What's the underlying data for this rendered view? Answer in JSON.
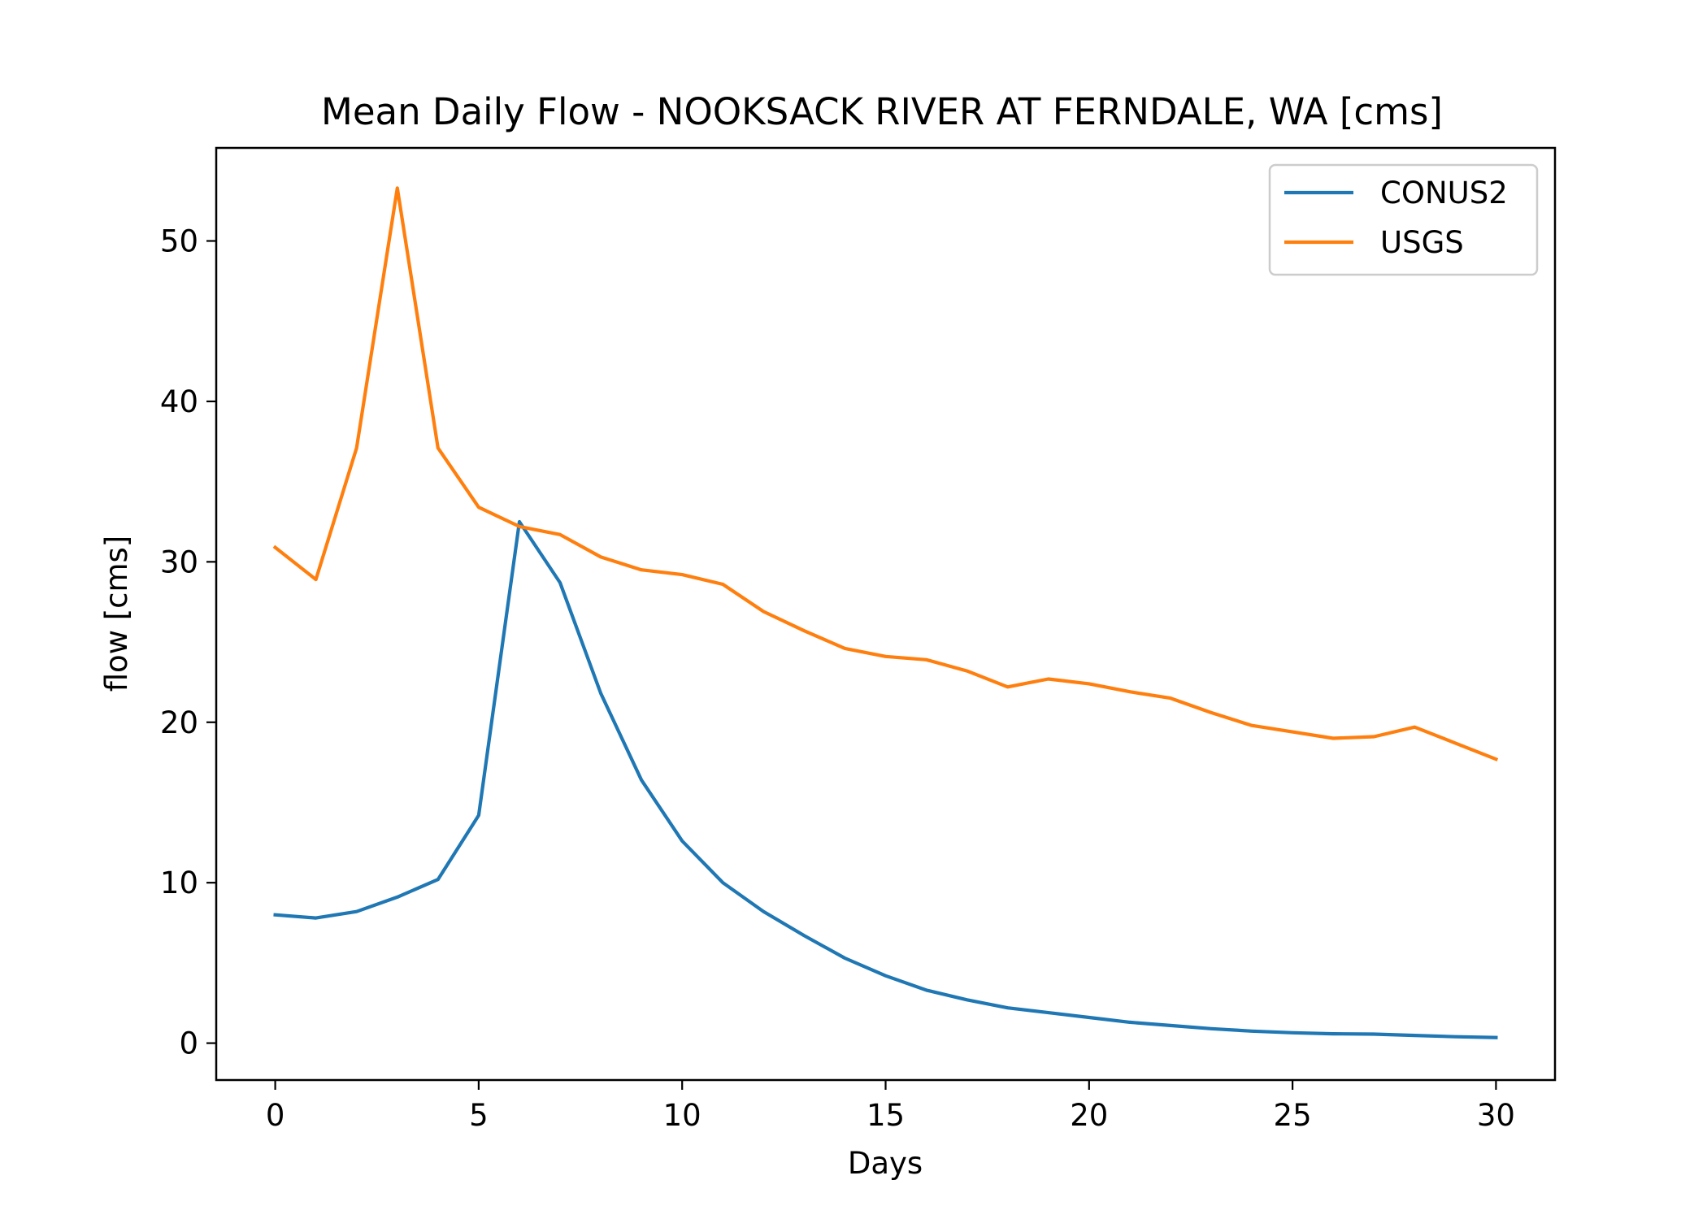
{
  "chart_data": {
    "type": "line",
    "title": "Mean Daily Flow - NOOKSACK RIVER AT FERNDALE, WA [cms]",
    "xlabel": "Days",
    "ylabel": "flow [cms]",
    "xlim": [
      -1.45,
      31.45
    ],
    "ylim": [
      -2.3,
      55.8
    ],
    "xticks": [
      0,
      5,
      10,
      15,
      20,
      25,
      30
    ],
    "yticks": [
      0,
      10,
      20,
      30,
      40,
      50
    ],
    "grid": false,
    "legend": "upper right",
    "x": [
      0,
      1,
      2,
      3,
      4,
      5,
      6,
      7,
      8,
      9,
      10,
      11,
      12,
      13,
      14,
      15,
      16,
      17,
      18,
      19,
      20,
      21,
      22,
      23,
      24,
      25,
      26,
      27,
      28,
      29,
      30
    ],
    "series": [
      {
        "name": "CONUS2",
        "color": "#1f77b4",
        "values": [
          8.0,
          7.8,
          8.2,
          9.1,
          10.2,
          14.2,
          32.5,
          28.7,
          21.8,
          16.4,
          12.6,
          10.0,
          8.2,
          6.7,
          5.3,
          4.2,
          3.3,
          2.7,
          2.2,
          1.9,
          1.6,
          1.3,
          1.1,
          0.9,
          0.75,
          0.65,
          0.58,
          0.56,
          0.48,
          0.4,
          0.35
        ]
      },
      {
        "name": "USGS",
        "color": "#ff7f0e",
        "values": [
          30.9,
          28.9,
          37.1,
          53.3,
          37.1,
          33.4,
          32.2,
          31.7,
          30.3,
          29.5,
          29.2,
          28.6,
          26.9,
          25.7,
          24.6,
          24.1,
          23.9,
          23.2,
          22.2,
          22.7,
          22.4,
          21.9,
          21.5,
          20.6,
          19.8,
          19.4,
          19.0,
          19.1,
          19.7,
          18.7,
          17.7
        ]
      }
    ]
  }
}
